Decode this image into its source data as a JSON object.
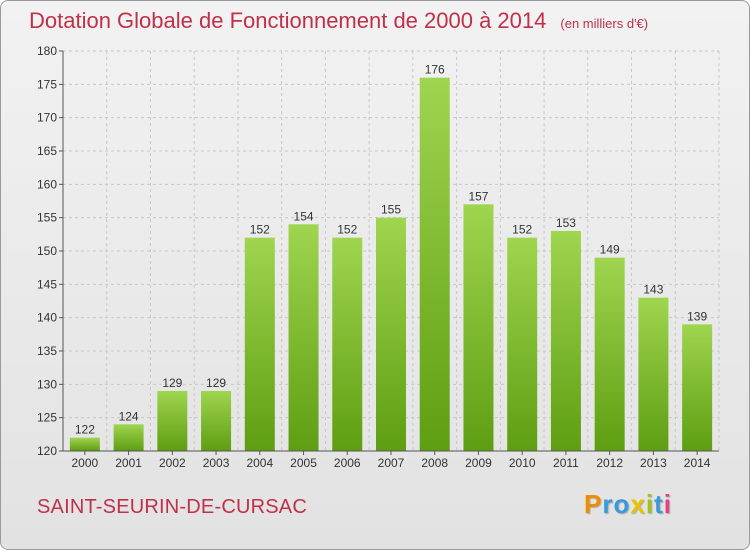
{
  "colors": {
    "title": "#c0304a",
    "bar_top": "#9fd54f",
    "bar_bottom": "#5e9e12",
    "grid": "#c8c8c8",
    "axis": "#555555"
  },
  "commune": "SAINT-SEURIN-DE-CURSAC",
  "logo": {
    "letters": [
      "P",
      "r",
      "o",
      "x",
      "i",
      "t",
      "i"
    ],
    "letter_colors": [
      "#f08c00",
      "#3a9ad9",
      "#3a9ad9",
      "#e8c400",
      "#9cc41c",
      "#3a9ad9",
      "#e84080"
    ]
  },
  "chart_data": {
    "type": "bar",
    "title": "Dotation Globale de Fonctionnement de 2000 à 2014",
    "subtitle": "(en milliers d'€)",
    "xlabel": "",
    "ylabel": "",
    "categories": [
      "2000",
      "2001",
      "2002",
      "2003",
      "2004",
      "2005",
      "2006",
      "2007",
      "2008",
      "2009",
      "2010",
      "2011",
      "2012",
      "2013",
      "2014"
    ],
    "values": [
      122,
      124,
      129,
      129,
      152,
      154,
      152,
      155,
      176,
      157,
      152,
      153,
      149,
      143,
      139
    ],
    "ylim": [
      120,
      180
    ],
    "yticks": [
      120,
      125,
      130,
      135,
      140,
      145,
      150,
      155,
      160,
      165,
      170,
      175,
      180
    ],
    "grid": true,
    "legend": "none"
  }
}
